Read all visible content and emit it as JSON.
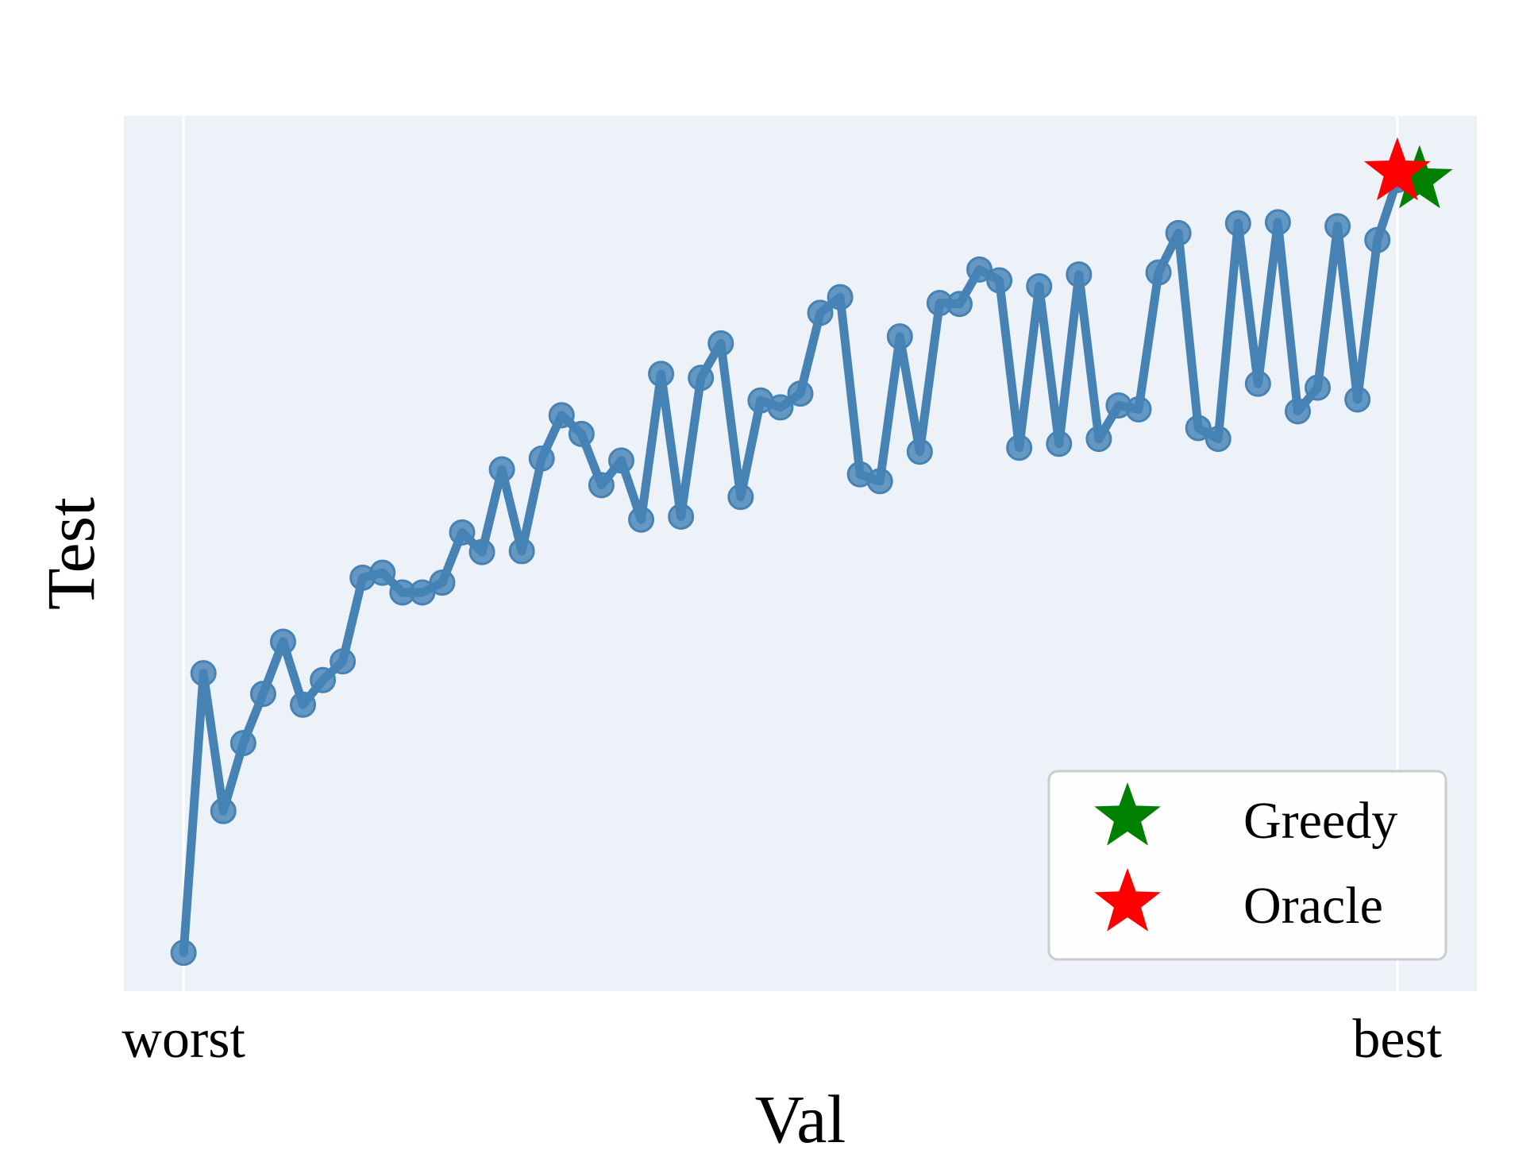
{
  "chart_data": {
    "type": "line",
    "xlabel": "Val",
    "ylabel": "Test",
    "x_tick_labels": [
      "worst",
      "best"
    ],
    "y_tick_labels": [],
    "grid": true,
    "legend_position": "bottom-right",
    "colors": {
      "plot_background": "#edf2f9",
      "line": "#4682b4",
      "greedy": "#008000",
      "oracle": "#ff0000",
      "legend_border": "#cccccc"
    },
    "xlim": [
      -3,
      65
    ],
    "ylim": [
      -3.9,
      85.0
    ],
    "series": [
      {
        "values": [
          0.0,
          28.4,
          14.4,
          21.3,
          26.3,
          31.6,
          25.2,
          27.7,
          29.6,
          38.1,
          38.6,
          36.6,
          36.6,
          37.6,
          42.7,
          40.7,
          49.1,
          40.8,
          50.2,
          54.6,
          52.7,
          47.5,
          50.0,
          44.0,
          58.8,
          44.3,
          58.4,
          61.9,
          46.3,
          56.1,
          55.4,
          56.8,
          65.0,
          66.6,
          48.6,
          47.9,
          62.6,
          50.9,
          66.0,
          65.9,
          69.4,
          68.3,
          51.3,
          67.7,
          51.7,
          68.9,
          52.2,
          55.6,
          55.2,
          69.1,
          73.1,
          53.3,
          52.2,
          74.1,
          57.8,
          74.2,
          55.0,
          57.4,
          73.8,
          56.2,
          72.4,
          78.5
        ]
      }
    ],
    "markers": [
      {
        "name": "Greedy",
        "x": 62,
        "y": 78.5
      },
      {
        "name": "Oracle",
        "x": 61,
        "y": 79.3
      }
    ]
  }
}
